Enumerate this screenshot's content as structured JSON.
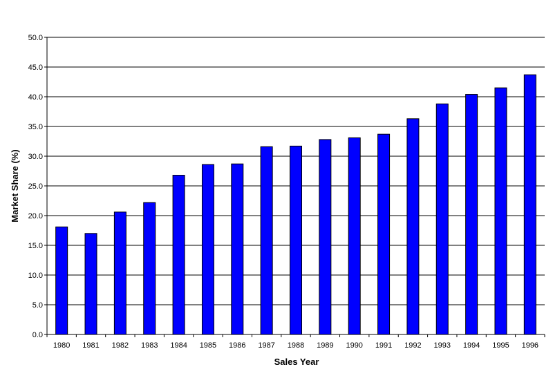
{
  "chart_data": {
    "type": "bar",
    "title": "",
    "xlabel": "Sales Year",
    "ylabel": "Market Share (%)",
    "ylim": [
      0,
      50
    ],
    "yticks": [
      "0.0",
      "5.0",
      "10.0",
      "15.0",
      "20.0",
      "25.0",
      "30.0",
      "35.0",
      "40.0",
      "45.0",
      "50.0"
    ],
    "categories": [
      "1980",
      "1981",
      "1982",
      "1983",
      "1984",
      "1985",
      "1986",
      "1987",
      "1988",
      "1989",
      "1990",
      "1991",
      "1992",
      "1993",
      "1994",
      "1995",
      "1996"
    ],
    "values": [
      18.1,
      17.0,
      20.6,
      22.2,
      26.8,
      28.6,
      28.7,
      31.6,
      31.7,
      32.8,
      33.1,
      33.7,
      36.3,
      38.8,
      40.4,
      41.5,
      43.7
    ],
    "grid": true,
    "legend": "none",
    "bar_color": "#0000ff"
  }
}
